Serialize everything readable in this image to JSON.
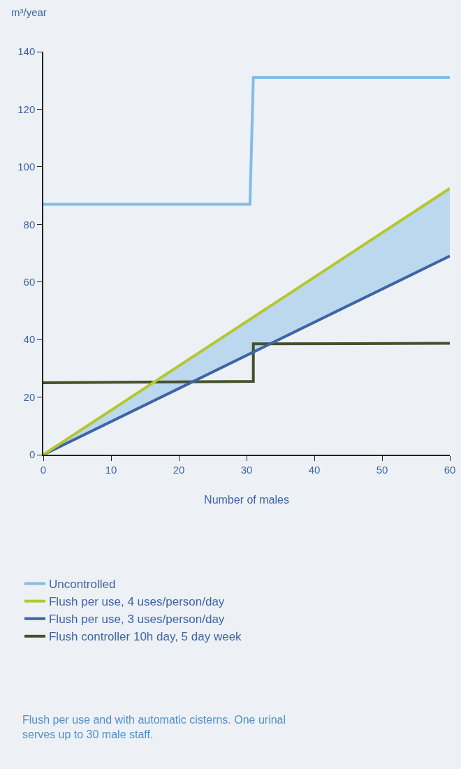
{
  "chart_data": {
    "type": "line",
    "xlabel": "Number of males",
    "ylabel": "m³/year",
    "xlim": [
      0,
      60
    ],
    "xticks": [
      0,
      10,
      20,
      30,
      40,
      50,
      60
    ],
    "ylim": [
      0,
      140
    ],
    "yticks": [
      0,
      20,
      40,
      60,
      80,
      100,
      120,
      140
    ],
    "grid": false,
    "legend": "bottom",
    "marker": "none",
    "line_style": "solid",
    "series": [
      {
        "name": "Flush controller 10h day, 5 day week",
        "color": "#47502a",
        "x": [
          0,
          31,
          31,
          60
        ],
        "values": [
          25,
          25.5,
          38.5,
          38.7
        ]
      },
      {
        "name": "Flush per use, 3 uses/person/day",
        "color": "#3d64a6",
        "x": [
          0,
          60
        ],
        "values": [
          0,
          69
        ]
      },
      {
        "name": "Flush per use, 4 uses/person/day",
        "color": "#b5c72e",
        "x": [
          0,
          60
        ],
        "values": [
          0,
          92.5
        ],
        "lower": [
          0,
          69
        ],
        "upper": [
          0,
          92.5
        ]
      },
      {
        "name": "Uncontrolled",
        "color": "#83bde3",
        "x": [
          0,
          30.5,
          31,
          60
        ],
        "values": [
          87,
          87,
          131,
          131
        ]
      }
    ],
    "annotations": [
      "Flush per use and with automatic cisterns. One urinal serves up to 30 male staff."
    ]
  }
}
